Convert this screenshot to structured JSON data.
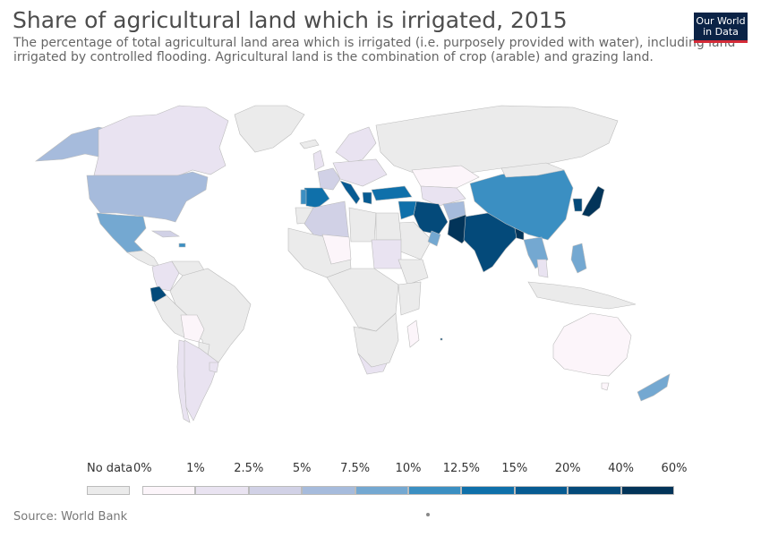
{
  "header": {
    "title": "Share of agricultural land which is irrigated, 2015",
    "subtitle": "The percentage of total agricultural land area which is irrigated (i.e. purposely provided with water), including land irrigated by controlled flooding. Agricultural land is the combination of crop (arable) and grazing land."
  },
  "logo": {
    "line1": "Our World",
    "line2": "in Data"
  },
  "legend": {
    "no_data_label": "No data",
    "no_data_color": "#ebebeb",
    "ticks": [
      "0%",
      "1%",
      "2.5%",
      "5%",
      "7.5%",
      "10%",
      "12.5%",
      "15%",
      "20%",
      "40%",
      "60%"
    ],
    "colors": [
      "#fcf5fa",
      "#e9e3f1",
      "#d1d1e6",
      "#a6bbdc",
      "#74a8d1",
      "#3b8fc2",
      "#0f70aa",
      "#075b92",
      "#044a7a",
      "#023459"
    ]
  },
  "map": {
    "ocean_color": "#ffffff",
    "border_color": "#bcbcbc"
  },
  "source": "Source: World Bank"
}
